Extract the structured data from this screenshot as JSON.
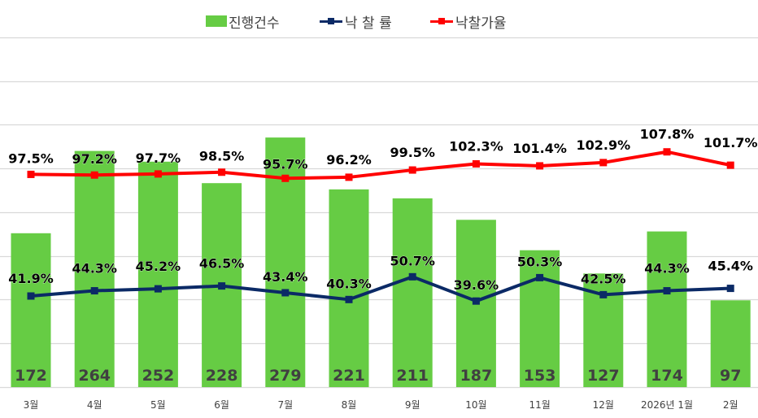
{
  "legend": {
    "bar_label": "진행건수",
    "rate_label": "낙 찰 률",
    "price_rate_label": "낙찰가율"
  },
  "colors": {
    "bar": "#66CC44",
    "rate_line": "#0B2A66",
    "price_rate_line": "#FF0000",
    "grid": "#D9D9D9",
    "axis_text": "#404040",
    "bar_label_text": "#404040",
    "line_label_text": "#000000"
  },
  "chart_data": {
    "type": "bar+line",
    "title": "",
    "categories": [
      "3월",
      "4월",
      "5월",
      "6월",
      "7월",
      "8월",
      "9월",
      "10월",
      "11월",
      "12월",
      "2026년 1월",
      "2월"
    ],
    "series": [
      {
        "name": "진행건수",
        "type": "bar",
        "axis": "primary",
        "values": [
          172,
          264,
          252,
          228,
          279,
          221,
          211,
          187,
          153,
          127,
          174,
          97
        ]
      },
      {
        "name": "낙 찰 률",
        "type": "line",
        "axis": "secondary",
        "unit": "%",
        "values": [
          41.9,
          44.3,
          45.2,
          46.5,
          43.4,
          40.3,
          50.7,
          39.6,
          50.3,
          42.5,
          44.3,
          45.4
        ]
      },
      {
        "name": "낙찰가율",
        "type": "line",
        "axis": "secondary",
        "unit": "%",
        "values": [
          97.5,
          97.2,
          97.7,
          98.5,
          95.7,
          96.2,
          99.5,
          102.3,
          101.4,
          102.9,
          107.8,
          101.7
        ]
      }
    ],
    "xlabel": "",
    "ylabel": "",
    "grid": true,
    "legend_position": "top",
    "axes_visible": false
  }
}
